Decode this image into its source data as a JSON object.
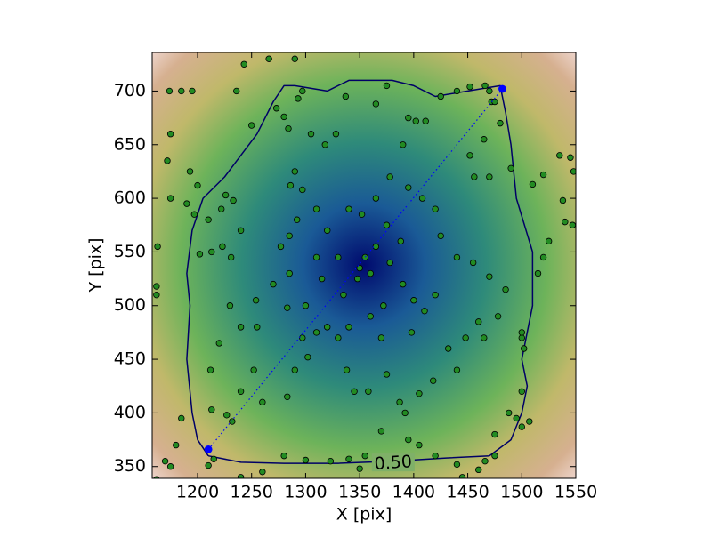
{
  "chart_data": {
    "type": "scatter",
    "xlabel": "X [pix]",
    "ylabel": "Y [pix]",
    "xlim": [
      1158,
      1550
    ],
    "ylim": [
      339,
      736
    ],
    "xticks": [
      1200,
      1250,
      1300,
      1350,
      1400,
      1450,
      1500,
      1550
    ],
    "yticks": [
      350,
      400,
      450,
      500,
      550,
      600,
      650,
      700
    ],
    "series": [
      {
        "color": "#228b22",
        "x": [
          1163,
          1162,
          1162,
          1175,
          1172,
          1175,
          1174,
          1185,
          1195,
          1193,
          1190,
          1200,
          1197,
          1202,
          1210,
          1213,
          1223,
          1222,
          1226,
          1233,
          1231,
          1240,
          1236,
          1243,
          1250,
          1266,
          1290,
          1297,
          1293,
          1284,
          1273,
          1280,
          1290,
          1286,
          1297,
          1305,
          1318,
          1328,
          1337,
          1365,
          1375,
          1395,
          1390,
          1402,
          1411,
          1425,
          1440,
          1452,
          1466,
          1470,
          1472,
          1475,
          1480,
          1465,
          1452,
          1456,
          1470,
          1490,
          1510,
          1520,
          1535,
          1545,
          1548,
          1538,
          1540,
          1547,
          1525,
          1520,
          1515,
          1500,
          1500,
          1502,
          1500,
          1495,
          1500,
          1507,
          1488,
          1475,
          1475,
          1466,
          1460,
          1445,
          1440,
          1420,
          1405,
          1395,
          1370,
          1355,
          1350,
          1340,
          1323,
          1300,
          1280,
          1260,
          1240,
          1215,
          1210,
          1180,
          1185,
          1175,
          1170,
          1162,
          1213,
          1227,
          1232,
          1240,
          1252,
          1260,
          1283,
          1290,
          1302,
          1297,
          1310,
          1320,
          1330,
          1338,
          1345,
          1358,
          1375,
          1387,
          1392,
          1405,
          1418,
          1440,
          1432,
          1448,
          1460,
          1465,
          1478,
          1485,
          1470,
          1455,
          1440,
          1425,
          1420,
          1408,
          1395,
          1378,
          1365,
          1352,
          1340,
          1320,
          1310,
          1292,
          1285,
          1277,
          1270,
          1254,
          1240,
          1220,
          1212,
          1230,
          1255,
          1285,
          1315,
          1335,
          1350,
          1355,
          1360,
          1365,
          1348,
          1378,
          1390,
          1400,
          1410,
          1420,
          1388,
          1375,
          1330,
          1310,
          1283,
          1300,
          1360,
          1370,
          1340,
          1372,
          1398
        ],
        "y": [
          555,
          518,
          510,
          600,
          635,
          660,
          700,
          700,
          700,
          625,
          595,
          612,
          585,
          548,
          580,
          550,
          555,
          590,
          603,
          598,
          545,
          570,
          700,
          725,
          668,
          730,
          730,
          700,
          693,
          665,
          684,
          676,
          625,
          612,
          608,
          660,
          650,
          660,
          695,
          688,
          705,
          675,
          650,
          672,
          672,
          695,
          700,
          704,
          705,
          700,
          690,
          690,
          670,
          655,
          640,
          620,
          620,
          628,
          613,
          622,
          640,
          638,
          625,
          598,
          578,
          575,
          560,
          545,
          530,
          470,
          475,
          460,
          420,
          395,
          387,
          392,
          400,
          380,
          360,
          355,
          347,
          340,
          352,
          360,
          370,
          375,
          383,
          360,
          348,
          357,
          355,
          356,
          360,
          345,
          340,
          357,
          351,
          370,
          395,
          350,
          355,
          338,
          403,
          398,
          392,
          420,
          440,
          410,
          415,
          440,
          452,
          470,
          475,
          480,
          470,
          440,
          420,
          420,
          436,
          410,
          400,
          418,
          430,
          440,
          460,
          470,
          485,
          470,
          490,
          515,
          527,
          540,
          545,
          565,
          590,
          600,
          610,
          620,
          600,
          585,
          590,
          570,
          590,
          580,
          565,
          555,
          520,
          505,
          480,
          465,
          440,
          500,
          480,
          530,
          525,
          510,
          535,
          545,
          530,
          555,
          525,
          540,
          520,
          505,
          495,
          510,
          560,
          575,
          545,
          545,
          498,
          500,
          490,
          470,
          480,
          500,
          475
        ]
      },
      {
        "color": "#0000ff",
        "x": [
          1210,
          1482
        ],
        "y": [
          366,
          702
        ]
      }
    ],
    "contour": {
      "label": "0.50",
      "color": "#000066",
      "x": [
        1210,
        1240,
        1280,
        1330,
        1380,
        1430,
        1470,
        1490,
        1500,
        1505,
        1500,
        1510,
        1510,
        1495,
        1490,
        1485,
        1480,
        1450,
        1420,
        1400,
        1380,
        1340,
        1320,
        1290,
        1280,
        1270,
        1255,
        1240,
        1225,
        1205,
        1195,
        1190,
        1193,
        1190,
        1195,
        1200,
        1210
      ],
      "y": [
        360,
        354,
        353,
        353,
        355,
        358,
        360,
        375,
        400,
        425,
        450,
        500,
        550,
        600,
        650,
        680,
        705,
        700,
        695,
        705,
        710,
        710,
        700,
        705,
        705,
        690,
        660,
        640,
        620,
        600,
        570,
        530,
        500,
        450,
        400,
        375,
        360
      ]
    }
  }
}
